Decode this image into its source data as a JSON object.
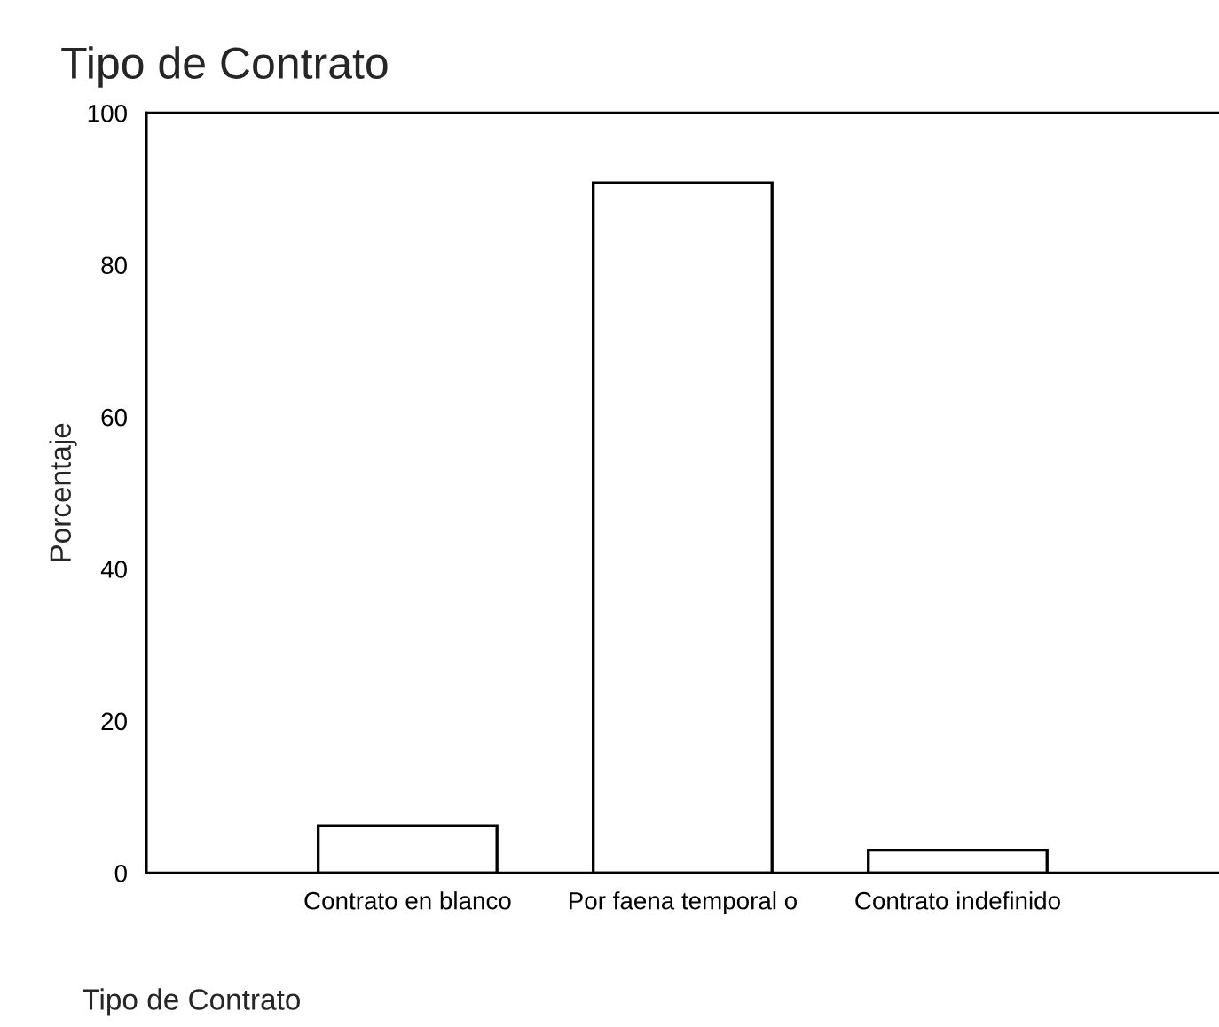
{
  "chart_data": {
    "type": "bar",
    "title": "Tipo de Contrato",
    "xlabel": "Tipo de Contrato",
    "ylabel": "Porcentaje",
    "categories": [
      "Contrato en blanco",
      "Por faena temporal o",
      "Contrato indefinido"
    ],
    "values": [
      6.2,
      90.8,
      3.0
    ],
    "color": "#ffffff",
    "ylim": [
      0,
      100
    ],
    "yticks": [
      0,
      20,
      40,
      60,
      80,
      100
    ],
    "grid": false
  }
}
